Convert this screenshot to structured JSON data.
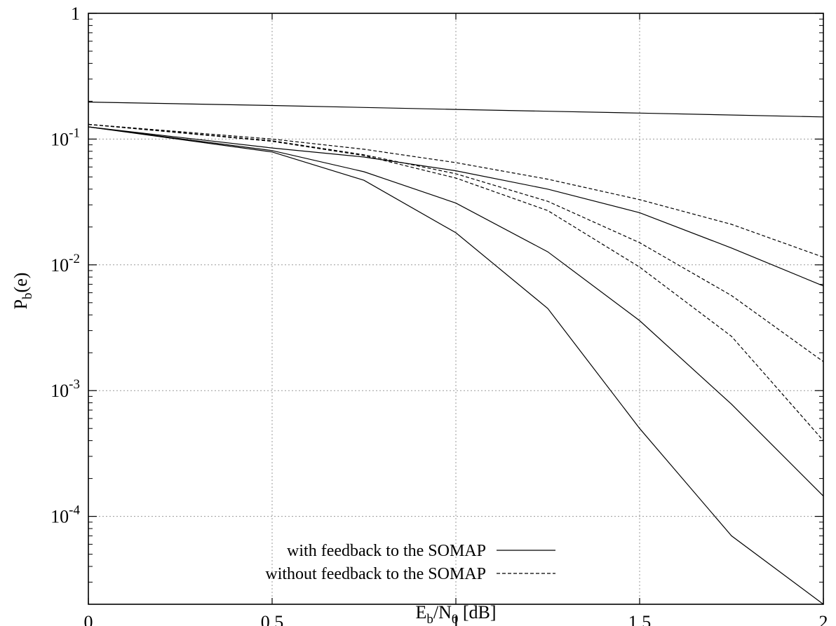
{
  "chart_data": {
    "type": "line",
    "xlabel": {
      "main": "E",
      "sub": "b",
      "mid": "/N",
      "sub2": "0",
      "tail": " [dB]"
    },
    "ylabel": {
      "main": "P",
      "sub": "b",
      "tail": "(e)"
    },
    "xlim": [
      0,
      2
    ],
    "ylim": [
      2e-05,
      1
    ],
    "yscale": "log",
    "grid": true,
    "legend_position": "bottom-center",
    "x_ticks": [
      {
        "value": 0,
        "label": "0"
      },
      {
        "value": 0.5,
        "label": "0.5"
      },
      {
        "value": 1,
        "label": "1"
      },
      {
        "value": 1.5,
        "label": "1.5"
      },
      {
        "value": 2,
        "label": "2"
      }
    ],
    "y_ticks": [
      {
        "value": 1,
        "base": "1",
        "exp": ""
      },
      {
        "value": 0.1,
        "base": "10",
        "exp": "-1"
      },
      {
        "value": 0.01,
        "base": "10",
        "exp": "-2"
      },
      {
        "value": 0.001,
        "base": "10",
        "exp": "-3"
      },
      {
        "value": 0.0001,
        "base": "10",
        "exp": "-4"
      }
    ],
    "legend": [
      {
        "label": "with feedback to the SOMAP",
        "style": "solid"
      },
      {
        "label": "without feedback to the SOMAP",
        "style": "dashed"
      }
    ],
    "series": [
      {
        "style": "solid",
        "x": [
          0,
          0.5,
          1,
          1.5,
          2
        ],
        "y": [
          0.197,
          0.185,
          0.172,
          0.161,
          0.15
        ]
      },
      {
        "style": "solid",
        "x": [
          0,
          0.5,
          0.75,
          1,
          1.25,
          1.5,
          1.75,
          2
        ],
        "y": [
          0.125,
          0.085,
          0.072,
          0.056,
          0.04,
          0.026,
          0.0136,
          0.0068
        ]
      },
      {
        "style": "solid",
        "x": [
          0,
          0.5,
          0.75,
          1,
          1.25,
          1.5,
          1.75,
          2
        ],
        "y": [
          0.125,
          0.081,
          0.055,
          0.031,
          0.0127,
          0.0036,
          0.00078,
          0.000145
        ]
      },
      {
        "style": "solid",
        "x": [
          0,
          0.5,
          0.75,
          1,
          1.25,
          1.5,
          1.75,
          2
        ],
        "y": [
          0.125,
          0.079,
          0.047,
          0.018,
          0.0045,
          0.0005,
          7e-05,
          2e-05
        ]
      },
      {
        "style": "dashed",
        "x": [
          0,
          0.5,
          0.75,
          1,
          1.25,
          1.5,
          1.75,
          2
        ],
        "y": [
          0.131,
          0.1,
          0.083,
          0.065,
          0.048,
          0.033,
          0.021,
          0.0115
        ]
      },
      {
        "style": "dashed",
        "x": [
          0,
          0.5,
          0.75,
          1,
          1.25,
          1.5,
          1.75,
          2
        ],
        "y": [
          0.131,
          0.097,
          0.075,
          0.053,
          0.032,
          0.015,
          0.0057,
          0.0017
        ]
      },
      {
        "style": "dashed",
        "x": [
          0,
          0.5,
          0.75,
          1,
          1.25,
          1.5,
          1.75,
          2
        ],
        "y": [
          0.131,
          0.096,
          0.074,
          0.049,
          0.027,
          0.0096,
          0.0027,
          0.0004
        ]
      }
    ]
  }
}
